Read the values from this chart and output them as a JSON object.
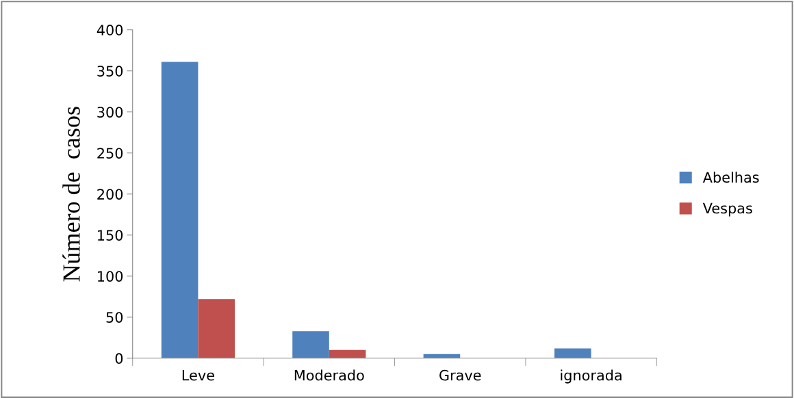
{
  "chart_data": {
    "type": "bar",
    "ylabel": "Número de  casos",
    "categories": [
      "Leve",
      "Moderado",
      "Grave",
      "ignorada"
    ],
    "series": [
      {
        "name": "Abelhas",
        "color": "#4f81bd",
        "values": [
          361,
          33,
          5,
          12
        ]
      },
      {
        "name": "Vespas",
        "color": "#c0504d",
        "values": [
          72,
          10,
          0,
          0
        ]
      }
    ],
    "ylim": [
      0,
      400
    ],
    "yticks": [
      0,
      50,
      100,
      150,
      200,
      250,
      300,
      350,
      400
    ],
    "grid": false,
    "legend": "right"
  }
}
